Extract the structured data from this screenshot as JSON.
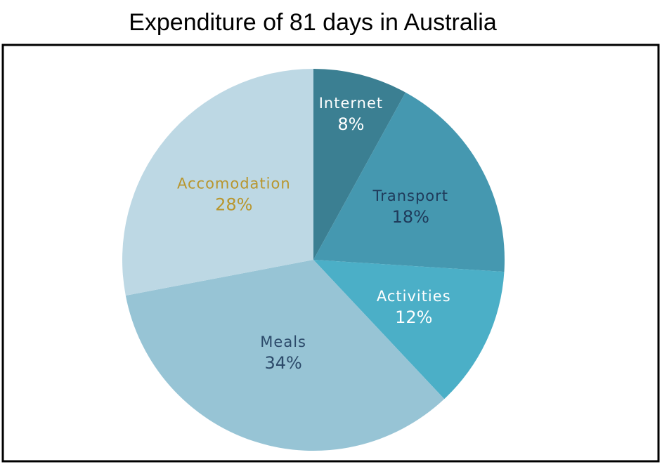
{
  "chart_data": {
    "type": "pie",
    "title": "Expenditure of 81 days in Australia",
    "categories": [
      "Internet",
      "Transport",
      "Activities",
      "Meals",
      "Accomodation"
    ],
    "values": [
      8,
      18,
      12,
      34,
      28
    ],
    "value_labels": [
      "8%",
      "18%",
      "12%",
      "34%",
      "28%"
    ],
    "colors": [
      "#3b7f92",
      "#4598b0",
      "#4bafc7",
      "#97c4d5",
      "#bdd8e4"
    ],
    "label_colors": [
      "#ffffff",
      "#1f3a5a",
      "#ffffff",
      "#2c4a6a",
      "#b8962e"
    ]
  }
}
